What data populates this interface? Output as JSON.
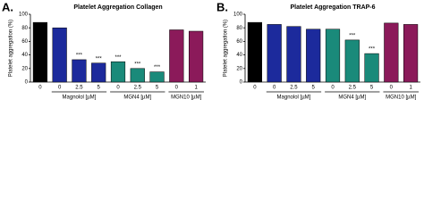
{
  "chart_data": [
    {
      "type": "bar",
      "panel_label": "A.",
      "title": "Platelet Aggregation Collagen",
      "y_label": "Platelet aggregation (%)",
      "categories": [
        "0",
        "0",
        "2.5",
        "5",
        "0",
        "2.5",
        "5",
        "0",
        "1"
      ],
      "values": [
        88,
        80,
        33,
        28,
        30,
        20,
        15,
        77,
        75
      ],
      "colors": [
        "#000000",
        "#1c2a9c",
        "#1c2a9c",
        "#1c2a9c",
        "#1a8a7a",
        "#1a8a7a",
        "#1a8a7a",
        "#8b1a5a",
        "#8b1a5a"
      ],
      "significance": [
        null,
        null,
        "***",
        "***",
        "***",
        "***",
        "***",
        null,
        null
      ],
      "groups": [
        "Magnolol [µM]",
        "MGN4 [µM]",
        "MGN10 [µM]"
      ],
      "ylim": [
        0,
        100
      ],
      "yticks": [
        0,
        20,
        40,
        60,
        80,
        100
      ]
    },
    {
      "type": "bar",
      "panel_label": "B.",
      "title": "Platelet Aggregation TRAP-6",
      "y_label": "Platelet aggregation (%)",
      "categories": [
        "0",
        "0",
        "2.5",
        "5",
        "0",
        "2.5",
        "5",
        "0",
        "1"
      ],
      "values": [
        88,
        85,
        82,
        78,
        78,
        62,
        42,
        87,
        85
      ],
      "colors": [
        "#000000",
        "#1c2a9c",
        "#1c2a9c",
        "#1c2a9c",
        "#1a8a7a",
        "#1a8a7a",
        "#1a8a7a",
        "#8b1a5a",
        "#8b1a5a"
      ],
      "significance": [
        null,
        null,
        null,
        null,
        null,
        "***",
        "***",
        null,
        null
      ],
      "groups": [
        "Magnolol [µM]",
        "MGN4 [µM]",
        "MGN10 [µM]"
      ],
      "ylim": [
        0,
        100
      ],
      "yticks": [
        0,
        20,
        40,
        60,
        80,
        100
      ]
    }
  ]
}
